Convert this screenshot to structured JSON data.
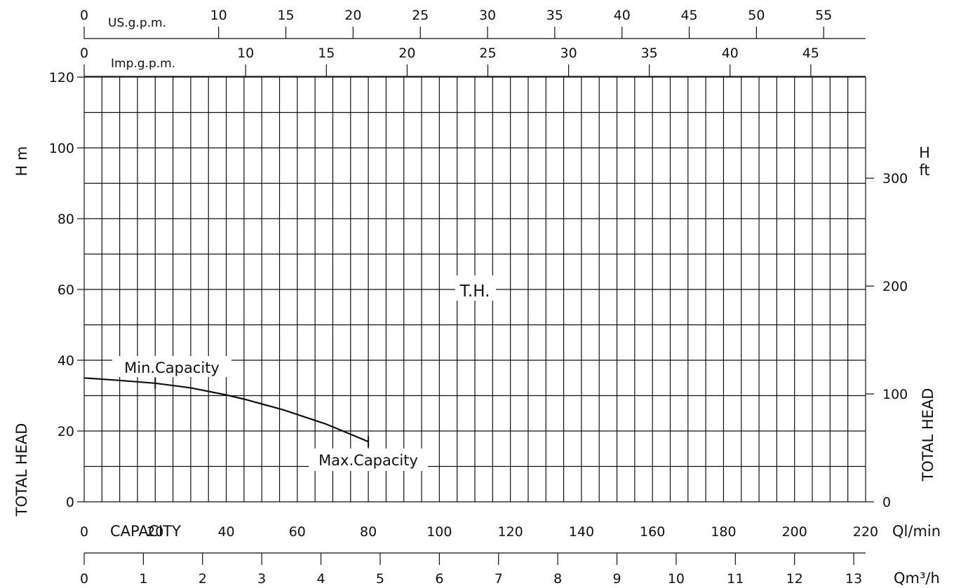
{
  "chart_data": {
    "type": "line",
    "title": "",
    "xlabel": "CAPACITY",
    "x_unit": "Ql/min",
    "ylabel": "TOTAL HEAD",
    "y_unit": "H m",
    "y2label": "TOTAL HEAD",
    "y2_unit": "H ft",
    "xlim": [
      0,
      220
    ],
    "ylim": [
      0,
      120
    ],
    "grid": true,
    "x_ticks": [
      0,
      20,
      40,
      60,
      80,
      100,
      120,
      140,
      160,
      180,
      200,
      220
    ],
    "y_ticks": [
      0,
      20,
      40,
      60,
      80,
      100,
      120
    ],
    "y2_ticks": [
      0,
      100,
      200,
      300
    ],
    "top_axes": [
      {
        "label": "US.g.p.m.",
        "ticks": [
          0,
          10,
          15,
          20,
          25,
          30,
          35,
          40,
          45,
          50,
          55
        ],
        "factor": 0.26417
      },
      {
        "label": "Imp.g.p.m.",
        "ticks": [
          0,
          10,
          15,
          20,
          25,
          30,
          35,
          40,
          45
        ],
        "factor": 0.21997
      }
    ],
    "bottom_axis": {
      "label": "Qm³/h",
      "ticks": [
        0,
        1,
        2,
        3,
        4,
        5,
        6,
        7,
        8,
        9,
        10,
        11,
        12,
        13
      ],
      "factor": 0.06
    },
    "series": [
      {
        "x": [
          0,
          10,
          20,
          30,
          40,
          45,
          56,
          68,
          80
        ],
        "y": [
          35,
          34.3,
          33.5,
          32.2,
          30.2,
          29,
          26,
          22,
          17
        ]
      }
    ],
    "annotations": [
      {
        "text": "T.H.",
        "x": 110,
        "y": 60
      },
      {
        "text": "Min.Capacity",
        "x": 20,
        "y": 33.5
      },
      {
        "text": "Max.Capacity",
        "x": 80,
        "y": 17
      }
    ]
  }
}
